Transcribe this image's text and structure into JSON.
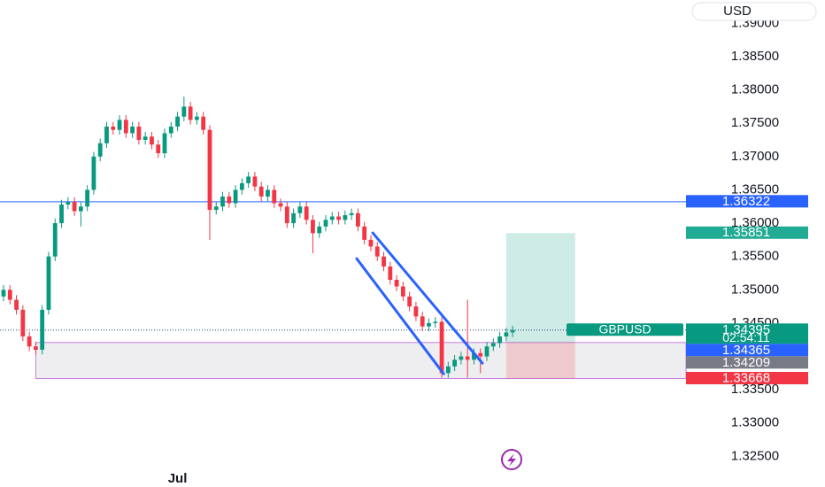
{
  "chart_data": {
    "type": "candlestick",
    "currency": "USD",
    "categories": [
      null,
      null,
      null,
      null,
      null,
      null,
      null,
      null,
      null,
      null,
      null,
      null,
      null,
      null,
      null,
      null,
      null,
      null,
      null,
      null,
      null,
      null,
      null,
      null,
      null,
      null,
      null,
      "Jul",
      null,
      null,
      null,
      null,
      null,
      null,
      null,
      null,
      null,
      null,
      null,
      null,
      null,
      null,
      null,
      null,
      null,
      null,
      null,
      null,
      null,
      null,
      null,
      null,
      null,
      null,
      null,
      null,
      null,
      null,
      null,
      null,
      null,
      null,
      null,
      null,
      null,
      null,
      null,
      null,
      null,
      null,
      null,
      null,
      null,
      null,
      null,
      null,
      null,
      null,
      null,
      null
    ],
    "open": [
      1.349,
      1.35,
      1.3485,
      1.347,
      1.343,
      1.3415,
      1.341,
      1.347,
      1.355,
      1.36,
      1.3628,
      1.3632,
      1.3618,
      1.3625,
      1.365,
      1.37,
      1.372,
      1.3745,
      1.374,
      1.3755,
      1.3735,
      1.3745,
      1.3725,
      1.373,
      1.3718,
      1.3705,
      1.3735,
      1.3745,
      1.376,
      1.3775,
      1.3755,
      1.376,
      1.374,
      1.362,
      1.3625,
      1.364,
      1.363,
      1.365,
      1.366,
      1.367,
      1.3655,
      1.364,
      1.365,
      1.363,
      1.3625,
      1.36,
      1.3615,
      1.3625,
      1.3605,
      1.3585,
      1.3595,
      1.3605,
      1.361,
      1.3605,
      1.3612,
      1.3615,
      1.3595,
      1.3575,
      1.3565,
      1.355,
      1.3535,
      1.3515,
      1.3505,
      1.349,
      1.3475,
      1.346,
      1.3445,
      1.345,
      1.3452,
      1.3375,
      1.3385,
      1.3395,
      1.34,
      1.3395,
      1.3405,
      1.34,
      1.3415,
      1.342,
      1.343,
      1.3436
    ],
    "high": [
      1.3507,
      1.3507,
      1.3492,
      1.3477,
      1.3437,
      1.3422,
      1.3477,
      1.3557,
      1.3607,
      1.3635,
      1.3639,
      1.3639,
      1.3632,
      1.3657,
      1.3707,
      1.3727,
      1.3752,
      1.3752,
      1.3762,
      1.3762,
      1.3752,
      1.3752,
      1.3737,
      1.3737,
      1.3725,
      1.3742,
      1.3752,
      1.3767,
      1.379,
      1.3782,
      1.3767,
      1.3767,
      1.3747,
      1.3632,
      1.3647,
      1.3647,
      1.3657,
      1.3667,
      1.3677,
      1.3677,
      1.3662,
      1.3657,
      1.3657,
      1.3637,
      1.3632,
      1.3622,
      1.3632,
      1.3632,
      1.3612,
      1.3602,
      1.3612,
      1.3617,
      1.3617,
      1.3619,
      1.3622,
      1.3622,
      1.3602,
      1.3582,
      1.3572,
      1.3557,
      1.3542,
      1.3522,
      1.3512,
      1.3497,
      1.3482,
      1.3467,
      1.3457,
      1.3459,
      1.3459,
      1.3392,
      1.3402,
      1.3407,
      1.3485,
      1.3412,
      1.3412,
      1.3422,
      1.3427,
      1.3437,
      1.3443,
      1.3446
    ],
    "low": [
      1.3483,
      1.3478,
      1.3463,
      1.3423,
      1.3408,
      1.3403,
      1.3403,
      1.3463,
      1.3543,
      1.3593,
      1.3621,
      1.3611,
      1.3595,
      1.3618,
      1.3643,
      1.3693,
      1.3713,
      1.3733,
      1.3733,
      1.3728,
      1.3728,
      1.3718,
      1.3718,
      1.3711,
      1.3698,
      1.3698,
      1.3728,
      1.3738,
      1.3753,
      1.3748,
      1.3748,
      1.3733,
      1.3575,
      1.3613,
      1.3618,
      1.3623,
      1.3623,
      1.3643,
      1.3653,
      1.3648,
      1.3633,
      1.3633,
      1.3623,
      1.3618,
      1.3593,
      1.3593,
      1.3608,
      1.3598,
      1.3555,
      1.3578,
      1.3588,
      1.3598,
      1.3598,
      1.3598,
      1.3605,
      1.3588,
      1.3568,
      1.3558,
      1.3543,
      1.3528,
      1.3508,
      1.3498,
      1.3483,
      1.3468,
      1.3453,
      1.3438,
      1.3438,
      1.3443,
      1.3368,
      1.3368,
      1.3378,
      1.3388,
      1.3368,
      1.3388,
      1.3375,
      1.3393,
      1.3408,
      1.3413,
      1.3423,
      1.3429
    ],
    "close": [
      1.35,
      1.3485,
      1.347,
      1.343,
      1.3415,
      1.341,
      1.347,
      1.355,
      1.36,
      1.3628,
      1.3632,
      1.3618,
      1.3625,
      1.365,
      1.37,
      1.372,
      1.3745,
      1.374,
      1.3755,
      1.3735,
      1.3745,
      1.3725,
      1.373,
      1.3718,
      1.3705,
      1.3735,
      1.3745,
      1.376,
      1.3775,
      1.3755,
      1.376,
      1.374,
      1.362,
      1.3625,
      1.364,
      1.363,
      1.365,
      1.366,
      1.367,
      1.3655,
      1.364,
      1.365,
      1.363,
      1.3625,
      1.36,
      1.3615,
      1.3625,
      1.3605,
      1.3585,
      1.3595,
      1.3605,
      1.361,
      1.3605,
      1.3612,
      1.3615,
      1.3595,
      1.3575,
      1.3565,
      1.355,
      1.3535,
      1.3515,
      1.3505,
      1.349,
      1.3475,
      1.346,
      1.3445,
      1.345,
      1.3452,
      1.3375,
      1.3385,
      1.3395,
      1.34,
      1.3395,
      1.3405,
      1.34,
      1.3415,
      1.342,
      1.343,
      1.3436,
      1.34395
    ],
    "up_color": "#089981",
    "down_color": "#f23645",
    "ylim": [
      1.3204,
      1.3935
    ],
    "yticks": [
      {
        "value": 1.39,
        "label": "1.39000"
      },
      {
        "value": 1.385,
        "label": "1.38500"
      },
      {
        "value": 1.38,
        "label": "1.38000"
      },
      {
        "value": 1.375,
        "label": "1.37500"
      },
      {
        "value": 1.37,
        "label": "1.37000"
      },
      {
        "value": 1.365,
        "label": "1.36500"
      },
      {
        "value": 1.36,
        "label": "1.36000"
      },
      {
        "value": 1.355,
        "label": "1.35500"
      },
      {
        "value": 1.35,
        "label": "1.35000"
      },
      {
        "value": 1.345,
        "label": "1.34500"
      },
      {
        "value": 1.335,
        "label": "1.33500"
      },
      {
        "value": 1.33,
        "label": "1.33000"
      },
      {
        "value": 1.325,
        "label": "1.32500"
      }
    ],
    "price_labels": [
      {
        "value": 1.36322,
        "color": "#2962ff",
        "line": "solid"
      },
      {
        "value": 1.35851,
        "color": "#22ab94"
      },
      {
        "value": 1.34395,
        "color": "#089981",
        "line": "dotted",
        "symbol": "GBPUSD",
        "countdown": "02:54:11"
      },
      {
        "value": 1.34365,
        "color": "#2962ff"
      },
      {
        "value": 1.34209,
        "color": "#787b86"
      },
      {
        "value": 1.33668,
        "color": "#f23645"
      }
    ],
    "zone": {
      "start": 5,
      "top": 1.34209,
      "bottom": 1.33668,
      "fill": "#eeeef0",
      "border": "#c77ddb"
    },
    "position": {
      "start": 78,
      "end": 88.7,
      "target": 1.35851,
      "entry": 1.34209,
      "stop": 1.33668
    },
    "channel_color": "#2962ff",
    "channel": [
      {
        "start": [
          57.3,
          1.35854
        ],
        "end": [
          74.3,
          1.33899
        ]
      },
      {
        "start": [
          54.8,
          1.35468
        ],
        "end": [
          68.3,
          1.33739
        ]
      }
    ]
  }
}
